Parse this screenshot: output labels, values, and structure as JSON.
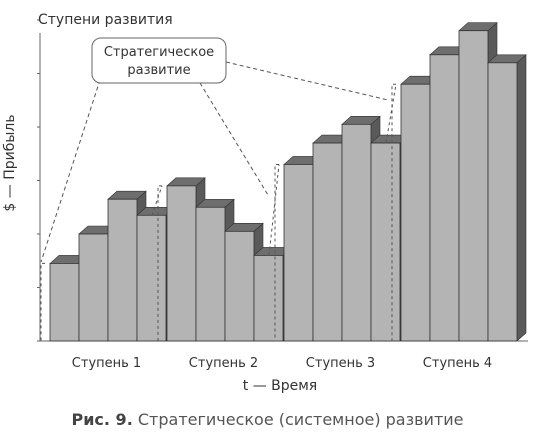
{
  "chart_data": {
    "type": "bar",
    "title": "Ступени развития",
    "xlabel": "t — Время",
    "ylabel": "$ — Прибыль",
    "categories": [
      "Ступень 1",
      "Ступень 2",
      "Ступень 3",
      "Ступень 4"
    ],
    "series": [
      {
        "values": [
          2.9,
          4.0,
          5.3,
          4.7
        ]
      },
      {
        "values": [
          5.8,
          5.0,
          4.1,
          3.2
        ]
      },
      {
        "values": [
          6.6,
          7.4,
          8.1,
          7.4
        ]
      },
      {
        "values": [
          9.6,
          10.7,
          11.6,
          10.4
        ]
      }
    ],
    "ylim": [
      0,
      12
    ],
    "grid": false,
    "legend": "none",
    "annotation": "Стратегическое развитие",
    "colors": {
      "bar_front": "#b4b4b4",
      "bar_top": "#6e6e6e",
      "bar_side": "#5a5a5a",
      "outline": "#333333"
    }
  },
  "caption": {
    "prefix": "Рис. 9.",
    "text": "Стратегическое (системное) развитие"
  }
}
